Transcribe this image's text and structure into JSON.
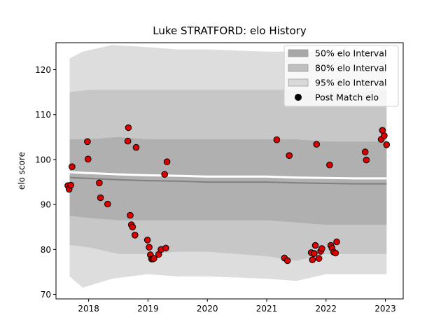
{
  "chart_data": {
    "type": "scatter",
    "title": "Luke STRATFORD: elo History",
    "xlabel": "",
    "ylabel": "elo score",
    "xlim": [
      2017.45,
      2023.3
    ],
    "ylim": [
      69,
      126
    ],
    "x_ticks": [
      2018,
      2019,
      2020,
      2021,
      2022,
      2023
    ],
    "x_tick_labels": [
      "2018",
      "2019",
      "2020",
      "2021",
      "2022",
      "2023"
    ],
    "y_ticks": [
      70,
      80,
      90,
      100,
      110,
      120
    ],
    "y_tick_labels": [
      "70",
      "80",
      "90",
      "100",
      "110",
      "120"
    ],
    "legend_position": "top-right",
    "colors": {
      "band50": "#a8a8a8",
      "band80": "#bfbfbf",
      "band95": "#d9d9d9",
      "mean_line": "#808080",
      "points_fill": "#dd0000",
      "points_edge": "#000000"
    },
    "bands": [
      {
        "name": "95% elo Interval",
        "x": [
          2017.68,
          2017.9,
          2018.4,
          2019.0,
          2019.5,
          2020.0,
          2021.0,
          2021.5,
          2022.0,
          2022.5,
          2023.02
        ],
        "upper": [
          122.5,
          124.0,
          125.5,
          125.0,
          124.5,
          124.5,
          124.0,
          124.0,
          124.0,
          124.0,
          124.0
        ],
        "lower": [
          74.0,
          71.5,
          73.5,
          74.5,
          74.0,
          74.0,
          73.5,
          73.0,
          74.5,
          74.5,
          74.5
        ]
      },
      {
        "name": "80% elo Interval",
        "x": [
          2017.68,
          2018.0,
          2018.5,
          2019.0,
          2019.5,
          2020.0,
          2021.0,
          2021.5,
          2022.0,
          2022.5,
          2023.02
        ],
        "upper": [
          115.0,
          115.5,
          115.5,
          115.5,
          115.5,
          115.5,
          115.5,
          115.5,
          115.0,
          115.0,
          115.5
        ],
        "lower": [
          81.0,
          80.5,
          79.0,
          79.0,
          79.5,
          79.5,
          78.5,
          77.5,
          79.0,
          79.0,
          79.0
        ]
      },
      {
        "name": "50% elo Interval",
        "x": [
          2017.68,
          2018.0,
          2018.5,
          2019.0,
          2019.5,
          2020.0,
          2021.0,
          2021.5,
          2022.0,
          2022.5,
          2023.02
        ],
        "upper": [
          104.5,
          104.5,
          105.0,
          104.5,
          104.5,
          104.5,
          104.5,
          104.5,
          104.0,
          104.0,
          104.0
        ],
        "lower": [
          87.5,
          87.0,
          86.5,
          86.5,
          86.5,
          86.5,
          86.5,
          86.0,
          85.5,
          85.5,
          85.5
        ]
      }
    ],
    "mean": {
      "x": [
        2017.68,
        2018.0,
        2018.5,
        2019.0,
        2019.5,
        2020.0,
        2021.0,
        2021.5,
        2022.0,
        2022.5,
        2023.02
      ],
      "y": [
        96.0,
        95.8,
        95.5,
        95.3,
        95.2,
        95.0,
        95.0,
        94.8,
        94.7,
        94.6,
        94.6
      ]
    },
    "series": [
      {
        "name": "Post Match elo",
        "x": [
          2017.65,
          2017.67,
          2017.7,
          2017.72,
          2017.98,
          2017.99,
          2018.18,
          2018.2,
          2018.32,
          2018.66,
          2018.67,
          2018.7,
          2018.72,
          2018.74,
          2018.78,
          2018.8,
          2018.99,
          2019.02,
          2019.04,
          2019.06,
          2019.08,
          2019.1,
          2019.18,
          2019.22,
          2019.28,
          2019.3,
          2019.32,
          2021.17,
          2021.3,
          2021.35,
          2021.38,
          2021.75,
          2021.77,
          2021.8,
          2021.82,
          2021.84,
          2021.88,
          2021.91,
          2021.93,
          2022.06,
          2022.08,
          2022.1,
          2022.13,
          2022.16,
          2022.18,
          2022.66,
          2022.68,
          2022.93,
          2022.95,
          2022.98,
          2023.02
        ],
        "y": [
          94.2,
          93.4,
          94.3,
          98.4,
          104.0,
          100.1,
          94.8,
          91.5,
          90.1,
          104.1,
          107.1,
          87.6,
          85.5,
          85.0,
          83.2,
          102.7,
          82.1,
          80.5,
          78.8,
          77.9,
          77.9,
          78.0,
          78.9,
          80.0,
          96.7,
          80.3,
          99.5,
          104.4,
          78.1,
          77.5,
          100.9,
          79.3,
          77.7,
          79.1,
          80.9,
          103.4,
          78.0,
          79.6,
          80.2,
          98.8,
          80.9,
          80.3,
          79.4,
          79.2,
          81.7,
          101.7,
          99.9,
          104.5,
          106.5,
          105.3,
          103.3
        ]
      }
    ],
    "legend": [
      {
        "label": "50% elo Interval",
        "kind": "band",
        "color": "#a8a8a8"
      },
      {
        "label": "80% elo Interval",
        "kind": "band",
        "color": "#bfbfbf"
      },
      {
        "label": "95% elo Interval",
        "kind": "band",
        "color": "#d9d9d9"
      },
      {
        "label": "Post Match elo",
        "kind": "marker",
        "color": "#000000"
      }
    ]
  }
}
